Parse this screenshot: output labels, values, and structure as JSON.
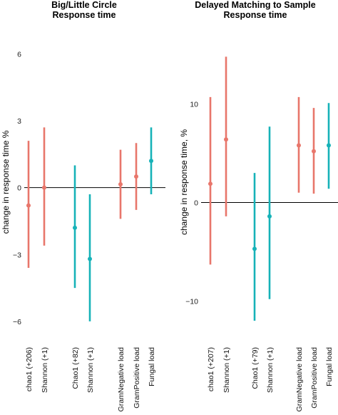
{
  "colors": {
    "group1": "#e8766b",
    "group2": "#16b2b8",
    "zero_line": "#000000"
  },
  "chart_data": [
    {
      "type": "errorbar",
      "title": "Big/Little Circle",
      "subtitle": "Response time",
      "ylabel": "change in response time %",
      "ylim": [
        -6.9,
        7.2
      ],
      "yticks": [
        6,
        3,
        0,
        -3,
        -6
      ],
      "ytick_labels": [
        "6",
        "3",
        "0",
        "−3",
        "−6"
      ],
      "zero_line": true,
      "points": [
        {
          "label": "chao1 (+206)",
          "value": -0.8,
          "lower": -3.6,
          "upper": 2.1,
          "color_group": "group1"
        },
        {
          "label": "Shannon (+1)",
          "value": 0.0,
          "lower": -2.6,
          "upper": 2.7,
          "color_group": "group1"
        },
        {
          "label": "Chao1 (+82)",
          "value": -1.8,
          "lower": -4.5,
          "upper": 1.0,
          "color_group": "group2"
        },
        {
          "label": "Shannon (+1)",
          "value": -3.2,
          "lower": -6.0,
          "upper": -0.3,
          "color_group": "group2"
        },
        {
          "label": "GramNegative load",
          "value": 0.15,
          "lower": -1.4,
          "upper": 1.7,
          "color_group": "group1"
        },
        {
          "label": "GramPositive load",
          "value": 0.5,
          "lower": -1.0,
          "upper": 2.0,
          "color_group": "group1"
        },
        {
          "label": "Fungal load",
          "value": 1.2,
          "lower": -0.3,
          "upper": 2.7,
          "color_group": "group2"
        }
      ]
    },
    {
      "type": "errorbar",
      "title": "Delayed Matching to Sample",
      "subtitle": "Response time",
      "ylabel": "change in  response time, %",
      "ylim": [
        -14.1,
        17.8
      ],
      "yticks": [
        10,
        0,
        -10
      ],
      "ytick_labels": [
        "10",
        "0",
        "−10"
      ],
      "zero_line": true,
      "points": [
        {
          "label": "chao1 (+207)",
          "value": 1.9,
          "lower": -6.3,
          "upper": 10.7,
          "color_group": "group1"
        },
        {
          "label": "Shannon (+1)",
          "value": 6.4,
          "lower": -1.4,
          "upper": 14.8,
          "color_group": "group1"
        },
        {
          "label": "Chao1 (+79)",
          "value": -4.7,
          "lower": -12.0,
          "upper": 3.0,
          "color_group": "group2"
        },
        {
          "label": "Shannon (+1)",
          "value": -1.4,
          "lower": -9.8,
          "upper": 7.7,
          "color_group": "group2"
        },
        {
          "label": "GramNegative load",
          "value": 5.8,
          "lower": 1.0,
          "upper": 10.7,
          "color_group": "group1"
        },
        {
          "label": "GramPositive load",
          "value": 5.2,
          "lower": 0.9,
          "upper": 9.6,
          "color_group": "group1"
        },
        {
          "label": "Fungal load",
          "value": 5.8,
          "lower": 1.4,
          "upper": 10.1,
          "color_group": "group2"
        }
      ]
    }
  ]
}
